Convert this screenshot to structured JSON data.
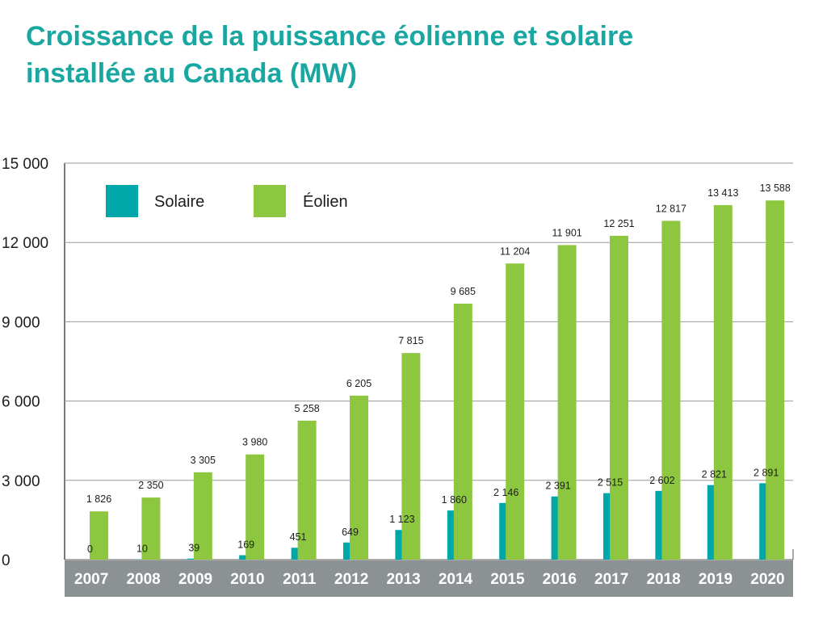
{
  "title": {
    "line1": "Croissance de la puissance éolienne et solaire",
    "line2": "installée au Canada (MW)"
  },
  "colors": {
    "solaire": "#00a7a8",
    "eolien": "#8dc63f",
    "title": "#1aa7a1",
    "axis_band": "#8c9194",
    "grid": "#9a9a9a"
  },
  "chart_data": {
    "type": "bar",
    "title": "Croissance de la puissance éolienne et solaire installée au Canada (MW)",
    "xlabel": "",
    "ylabel": "",
    "ylim": [
      0,
      15000
    ],
    "yticks": [
      0,
      3000,
      6000,
      9000,
      12000,
      15000
    ],
    "ytick_labels": [
      "0",
      "3 000",
      "6 000",
      "9 000",
      "12 000",
      "15 000"
    ],
    "grid": true,
    "legend": "top-left",
    "categories": [
      "2007",
      "2008",
      "2009",
      "2010",
      "2011",
      "2012",
      "2013",
      "2014",
      "2015",
      "2016",
      "2017",
      "2018",
      "2019",
      "2020"
    ],
    "series": [
      {
        "name": "Solaire",
        "values": [
          0,
          10,
          39,
          169,
          451,
          649,
          1123,
          1860,
          2146,
          2391,
          2515,
          2602,
          2821,
          2891
        ],
        "labels": [
          "0",
          "10",
          "39",
          "169",
          "451",
          "649",
          "1 123",
          "1 860",
          "2 146",
          "2 391",
          "2 515",
          "2 602",
          "2 821",
          "2 891"
        ]
      },
      {
        "name": "Éolien",
        "values": [
          1826,
          2350,
          3305,
          3980,
          5258,
          6205,
          7815,
          9685,
          11204,
          11901,
          12251,
          12817,
          13413,
          13588
        ],
        "labels": [
          "1 826",
          "2 350",
          "3 305",
          "3 980",
          "5 258",
          "6 205",
          "7 815",
          "9 685",
          "11 204",
          "11 901",
          "12 251",
          "12 817",
          "13 413",
          "13 588"
        ]
      }
    ]
  }
}
